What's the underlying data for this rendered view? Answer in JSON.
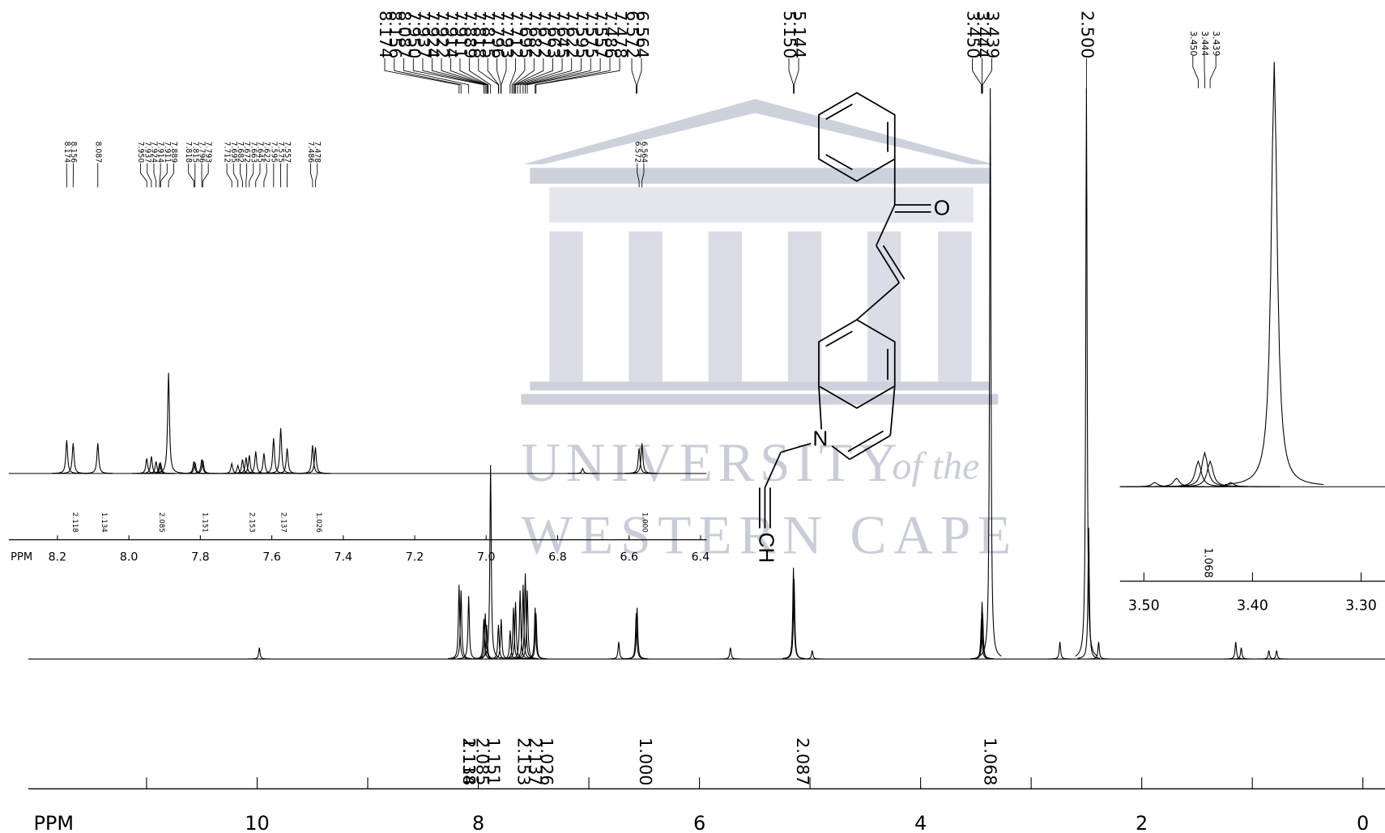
{
  "chart_data": [
    {
      "type": "spectrum",
      "x_label": "PPM",
      "xlim": [
        12.07,
        -0.2
      ],
      "ylim": [
        0,
        100
      ],
      "xticks": [
        10,
        8,
        6,
        4,
        2,
        0
      ],
      "minor_xticks": [
        11,
        9,
        7,
        5,
        3,
        1
      ],
      "color": "#000000",
      "peaks": {
        "x": [
          9.98,
          8.174,
          8.156,
          8.087,
          7.95,
          7.937,
          7.924,
          7.889,
          7.818,
          7.793,
          7.712,
          7.682,
          7.663,
          7.622,
          7.595,
          7.575,
          7.557,
          7.486,
          7.478,
          6.73,
          6.572,
          6.564,
          5.72,
          5.15,
          5.144,
          4.98,
          3.45,
          3.444,
          3.439,
          3.37,
          2.74,
          2.5,
          2.48,
          2.39,
          1.15,
          1.1,
          0.85,
          0.78
        ],
        "values": [
          2,
          13,
          12,
          11,
          7,
          8,
          6,
          34,
          6,
          7,
          5,
          9,
          10,
          12,
          13,
          15,
          12,
          9,
          8,
          3,
          8,
          9,
          2,
          16,
          14,
          1.5,
          7,
          10,
          8,
          100,
          3,
          100,
          23,
          3,
          3,
          2,
          1.5,
          1.5
        ]
      },
      "peak_labels": [
        "8.174",
        "8.156",
        "8.087",
        "7.950",
        "7.937",
        "7.924",
        "7.922",
        "7.914",
        "7.911",
        "7.889",
        "7.818",
        "7.815",
        "7.796",
        "7.793",
        "7.712",
        "7.695",
        "7.682",
        "7.672",
        "7.663",
        "7.645",
        "7.622",
        "7.595",
        "7.575",
        "7.557",
        "7.486",
        "7.478",
        "6.564",
        "6.572",
        "5.144",
        "5.150",
        "3.439",
        "3.444",
        "3.450",
        "2.500"
      ],
      "integrals": [
        2.118,
        1.134,
        2.085,
        1.151,
        2.153,
        2.137,
        1.026,
        {
          "value": 1,
          "label": "1.000"
        },
        2.087,
        1.068
      ]
    },
    {
      "type": "spectrum",
      "x_label": "PPM",
      "xlim": [
        8.336,
        6.383
      ],
      "ylim": [
        0,
        100
      ],
      "xticks": [
        8.2,
        {
          "value": 8,
          "label": "8.0"
        },
        7.8,
        7.6,
        7.4,
        7.2,
        {
          "value": 7,
          "label": "7.0"
        },
        6.8,
        6.6,
        6.4
      ],
      "color": "#000000",
      "peaks": {
        "x": [
          8.174,
          8.156,
          8.087,
          7.95,
          7.937,
          7.924,
          7.914,
          7.911,
          7.889,
          7.818,
          7.815,
          7.796,
          7.793,
          7.712,
          7.695,
          7.682,
          7.672,
          7.663,
          7.645,
          7.622,
          7.595,
          7.575,
          7.557,
          7.486,
          7.478,
          6.73,
          6.572,
          6.564
        ],
        "values": [
          33,
          30,
          30,
          15,
          17,
          12,
          10,
          10,
          100,
          12,
          11,
          14,
          13,
          10,
          8,
          14,
          16,
          18,
          22,
          20,
          35,
          45,
          25,
          28,
          26,
          5,
          25,
          30
        ]
      },
      "peak_labels": [
        "8.156",
        "8.174",
        "8.087",
        "7.950",
        "7.937",
        "7.924",
        "7.914",
        "7.911",
        "7.889",
        "7.818",
        "7.815",
        "7.796",
        "7.793",
        "7.712",
        "7.695",
        "7.682",
        "7.672",
        "7.663",
        "7.645",
        "7.622",
        "7.595",
        "7.575",
        "7.557",
        "7.486",
        "7.478",
        "6.564",
        "6.572"
      ],
      "integrals": [
        2.118,
        1.134,
        2.085,
        1.151,
        2.153,
        2.137,
        1.026,
        {
          "value": 1,
          "label": "1.000"
        }
      ]
    },
    {
      "type": "spectrum",
      "xlim": [
        3.522,
        3.278
      ],
      "ylim": [
        0,
        100
      ],
      "xticks": [
        {
          "value": 3.5,
          "label": "3.50"
        },
        {
          "value": 3.4,
          "label": "3.40"
        },
        {
          "value": 3.3,
          "label": "3.30"
        }
      ],
      "color": "#000000",
      "peaks": {
        "x": [
          3.49,
          3.47,
          3.45,
          3.444,
          3.439,
          3.42,
          3.38
        ],
        "values": [
          1,
          2,
          6,
          8,
          6,
          1,
          100
        ]
      },
      "peak_labels": [
        "3.439",
        "3.444",
        "3.450"
      ],
      "integrals": [
        1.068
      ]
    }
  ],
  "structure": {
    "atoms": [
      "O",
      "N",
      "CH"
    ]
  },
  "watermark": [
    "UNIVERSITY",
    "of the",
    "WESTERN CAPE"
  ]
}
